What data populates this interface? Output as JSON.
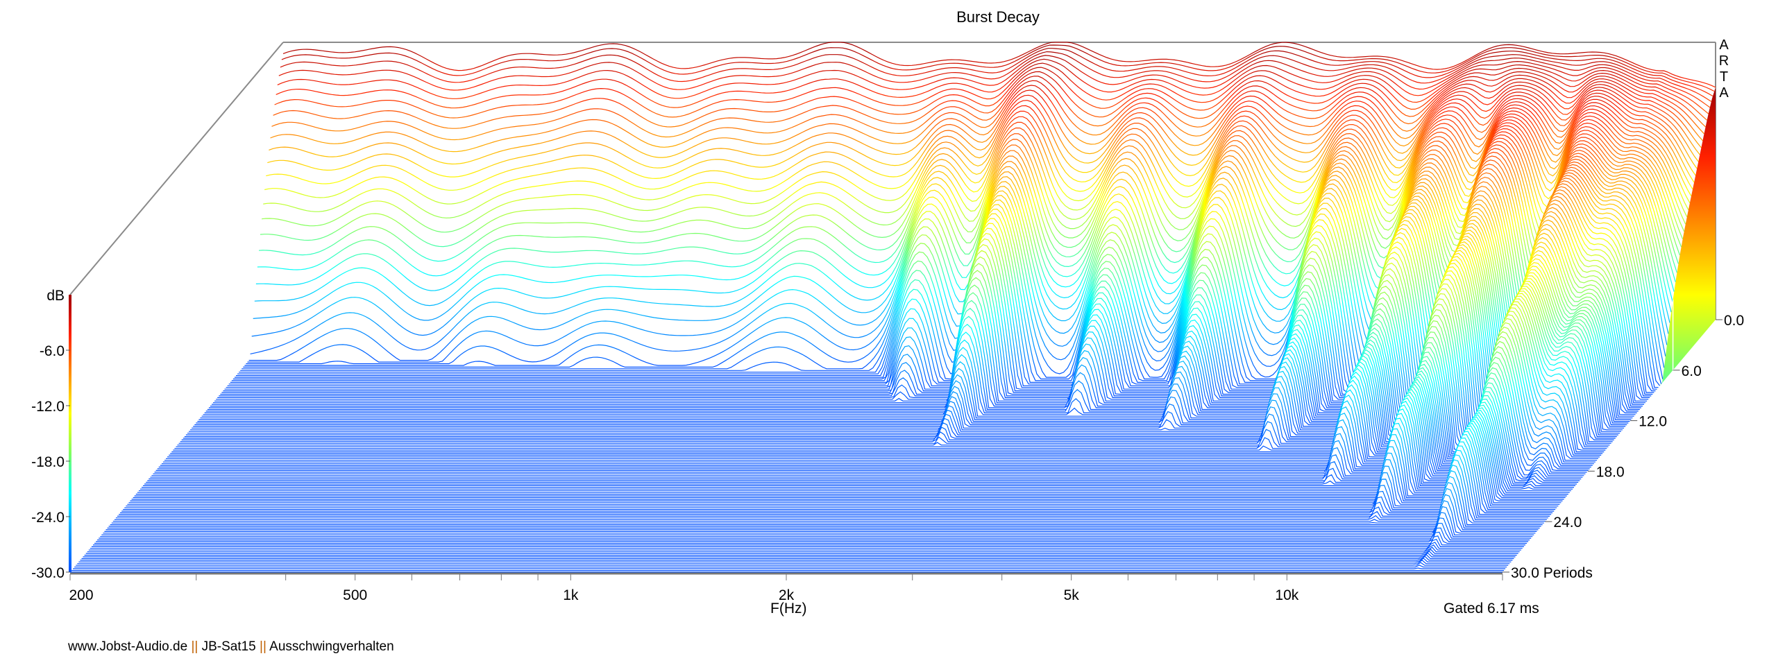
{
  "chart_data": {
    "type": "waterfall",
    "title": "Burst Decay",
    "xlabel": "F(Hz)",
    "ylabel": "dB",
    "zlabel": "Periods",
    "x_scale": "log",
    "xlim": [
      200,
      20000
    ],
    "ylim": [
      -30,
      0
    ],
    "zlim": [
      0,
      30
    ],
    "x_ticks": [
      {
        "value": 200,
        "label": "200"
      },
      {
        "value": 500,
        "label": "500"
      },
      {
        "value": 1000,
        "label": "1k"
      },
      {
        "value": 2000,
        "label": "2k"
      },
      {
        "value": 5000,
        "label": "5k"
      },
      {
        "value": 10000,
        "label": "10k"
      }
    ],
    "y_ticks": [
      {
        "value": -6,
        "label": "-6.0"
      },
      {
        "value": -12,
        "label": "-12.0"
      },
      {
        "value": -18,
        "label": "-18.0"
      },
      {
        "value": -24,
        "label": "-24.0"
      },
      {
        "value": -30,
        "label": "-30.0"
      }
    ],
    "z_ticks": [
      {
        "value": 0,
        "label": "0.0"
      },
      {
        "value": 6,
        "label": "6.0"
      },
      {
        "value": 12,
        "label": "12.0"
      },
      {
        "value": 18,
        "label": "18.0"
      },
      {
        "value": 24,
        "label": "24.0"
      },
      {
        "value": 30,
        "label": "30.0 Periods"
      }
    ],
    "base_decay_periods": 5,
    "resonances": [
      {
        "freq_hz": 1800,
        "extra_decay_periods": 4
      },
      {
        "freq_hz": 2300,
        "extra_decay_periods": 8
      },
      {
        "freq_hz": 3300,
        "extra_decay_periods": 5
      },
      {
        "freq_hz": 4600,
        "extra_decay_periods": 6
      },
      {
        "freq_hz": 6700,
        "extra_decay_periods": 9
      },
      {
        "freq_hz": 9000,
        "extra_decay_periods": 14
      },
      {
        "freq_hz": 11500,
        "extra_decay_periods": 18
      },
      {
        "freq_hz": 15000,
        "extra_decay_periods": 22
      },
      {
        "freq_hz": 17500,
        "extra_decay_periods": 13
      }
    ],
    "colormap": [
      "#0050ff",
      "#00a0ff",
      "#00ffff",
      "#80ff60",
      "#ffff00",
      "#ff9000",
      "#ff2000",
      "#a00000"
    ],
    "gating_note": "Gated 6.17 ms",
    "watermark": "ARTA"
  },
  "footer": {
    "site": "www.Jobst-Audio.de",
    "sep1": "||",
    "model": "JB-Sat15",
    "sep2": "||",
    "description": "Ausschwingverhalten"
  }
}
